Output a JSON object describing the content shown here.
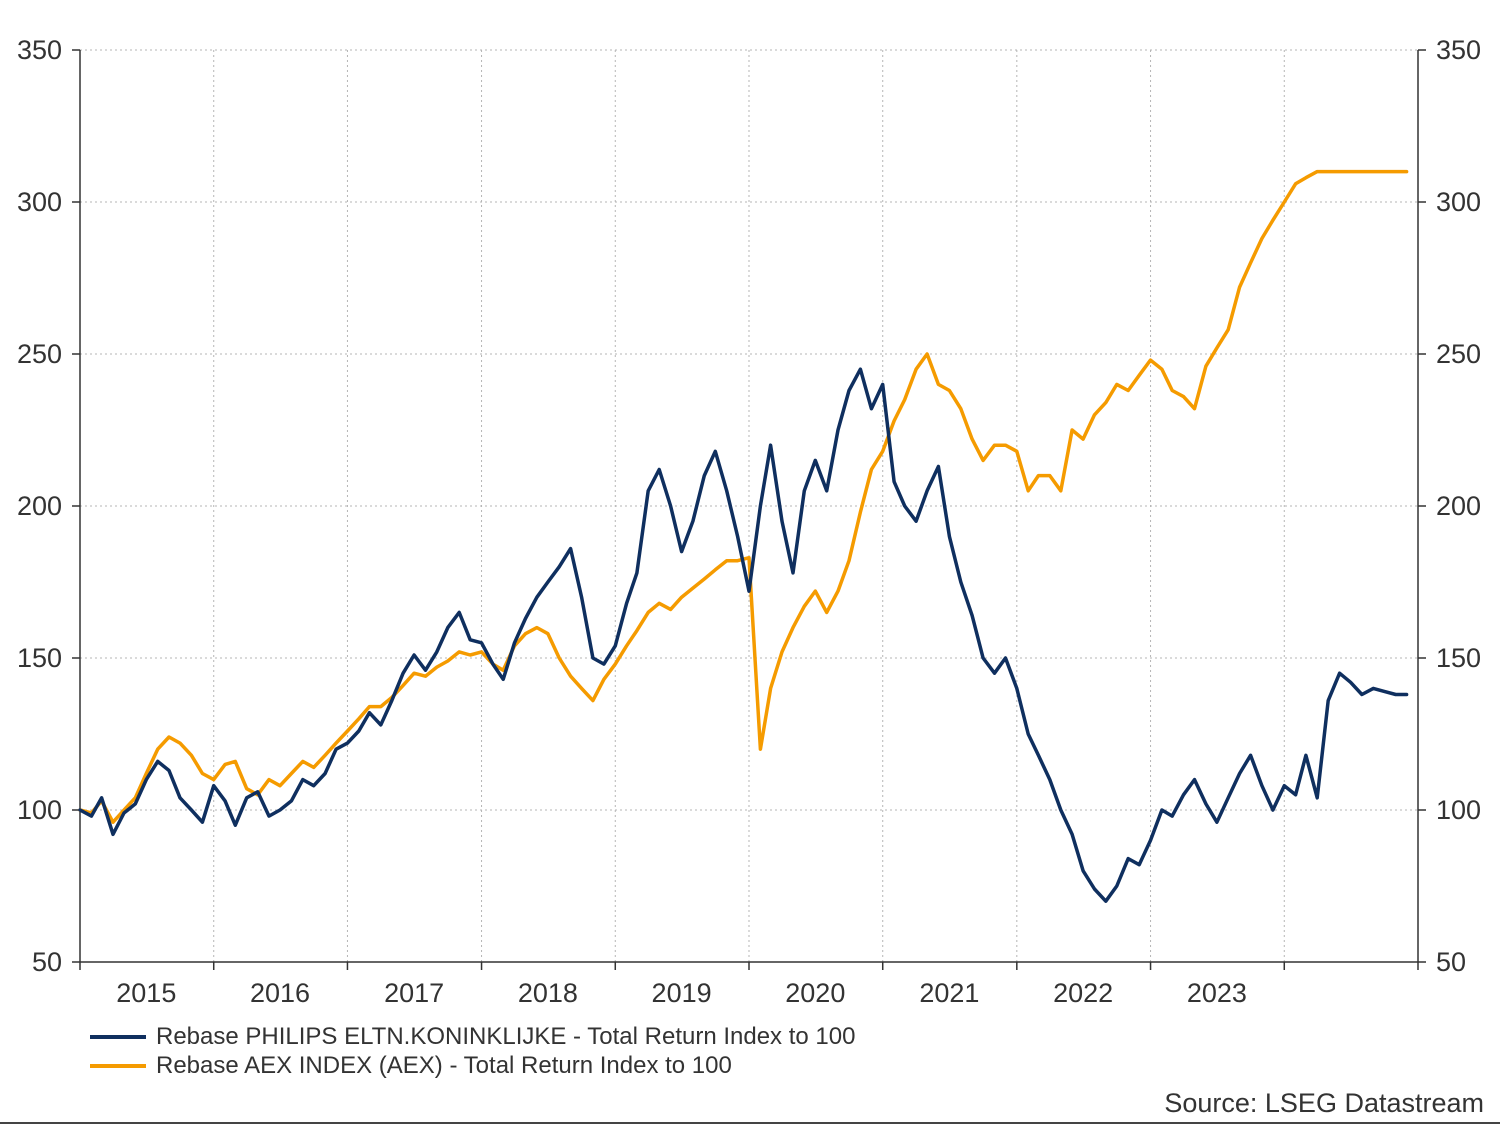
{
  "chart_data": {
    "type": "line",
    "title": "",
    "xlabel": "",
    "ylabel": "",
    "ylim": [
      50,
      350
    ],
    "xlim": [
      "2014-01-01",
      "2024-01-01"
    ],
    "y_ticks": [
      50,
      100,
      150,
      200,
      250,
      300,
      350
    ],
    "y_tick_labels": [
      "50",
      "100",
      "150",
      "200",
      "250",
      "300",
      "350"
    ],
    "x_tick_labels": [
      "2015",
      "2016",
      "2017",
      "2018",
      "2019",
      "2020",
      "2021",
      "2022",
      "2023"
    ],
    "x_tick_dates": [
      "2014-07-01",
      "2015-07-01",
      "2016-07-01",
      "2017-07-01",
      "2018-07-01",
      "2019-07-01",
      "2020-07-01",
      "2021-07-01",
      "2022-07-01"
    ],
    "x_major_ticks": [
      "2014-01-01",
      "2015-01-01",
      "2016-01-01",
      "2017-01-01",
      "2018-01-01",
      "2019-01-01",
      "2020-01-01",
      "2021-01-01",
      "2022-01-01",
      "2023-01-01",
      "2024-01-01"
    ],
    "grid": true,
    "dual_y_axis": true,
    "legend_position": "bottom-left",
    "series": [
      {
        "name": "Rebase PHILIPS ELTN.KONINKLIJKE - Total Return Index to 100",
        "color": "#0f2f5f",
        "x": [
          "2014-01-01",
          "2014-02-01",
          "2014-03-01",
          "2014-04-01",
          "2014-05-01",
          "2014-06-01",
          "2014-07-01",
          "2014-08-01",
          "2014-09-01",
          "2014-10-01",
          "2014-11-01",
          "2014-12-01",
          "2015-01-01",
          "2015-02-01",
          "2015-03-01",
          "2015-04-01",
          "2015-05-01",
          "2015-06-01",
          "2015-07-01",
          "2015-08-01",
          "2015-09-01",
          "2015-10-01",
          "2015-11-01",
          "2015-12-01",
          "2016-01-01",
          "2016-02-01",
          "2016-03-01",
          "2016-04-01",
          "2016-05-01",
          "2016-06-01",
          "2016-07-01",
          "2016-08-01",
          "2016-09-01",
          "2016-10-01",
          "2016-11-01",
          "2016-12-01",
          "2017-01-01",
          "2017-02-01",
          "2017-03-01",
          "2017-04-01",
          "2017-05-01",
          "2017-06-01",
          "2017-07-01",
          "2017-08-01",
          "2017-09-01",
          "2017-10-01",
          "2017-11-01",
          "2017-12-01",
          "2018-01-01",
          "2018-02-01",
          "2018-03-01",
          "2018-04-01",
          "2018-05-01",
          "2018-06-01",
          "2018-07-01",
          "2018-08-01",
          "2018-09-01",
          "2018-10-01",
          "2018-11-01",
          "2018-12-01",
          "2019-01-01",
          "2019-02-01",
          "2019-03-01",
          "2019-04-01",
          "2019-05-01",
          "2019-06-01",
          "2019-07-01",
          "2019-08-01",
          "2019-09-01",
          "2019-10-01",
          "2019-11-01",
          "2019-12-01",
          "2020-01-01",
          "2020-02-01",
          "2020-03-01",
          "2020-04-01",
          "2020-05-01",
          "2020-06-01",
          "2020-07-01",
          "2020-08-01",
          "2020-09-01",
          "2020-10-01",
          "2020-11-01",
          "2020-12-01",
          "2021-01-01",
          "2021-02-01",
          "2021-03-01",
          "2021-04-01",
          "2021-05-01",
          "2021-06-01",
          "2021-07-01",
          "2021-08-01",
          "2021-09-01",
          "2021-10-01",
          "2021-11-01",
          "2021-12-01",
          "2022-01-01",
          "2022-02-01",
          "2022-03-01",
          "2022-04-01",
          "2022-05-01",
          "2022-06-01",
          "2022-07-01",
          "2022-08-01",
          "2022-09-01",
          "2022-10-01",
          "2022-11-01",
          "2022-12-01",
          "2023-01-01",
          "2023-02-01",
          "2023-03-01",
          "2023-04-01",
          "2023-05-01",
          "2023-06-01",
          "2023-07-01",
          "2023-08-01",
          "2023-09-01",
          "2023-10-01",
          "2023-11-01",
          "2023-12-01"
        ],
        "values": [
          100,
          98,
          104,
          92,
          99,
          102,
          110,
          116,
          113,
          104,
          100,
          96,
          108,
          103,
          95,
          104,
          106,
          98,
          100,
          103,
          110,
          108,
          112,
          120,
          122,
          126,
          132,
          128,
          136,
          145,
          151,
          146,
          152,
          160,
          165,
          156,
          155,
          148,
          143,
          155,
          163,
          170,
          175,
          180,
          186,
          170,
          150,
          148,
          154,
          168,
          178,
          205,
          212,
          200,
          185,
          195,
          210,
          218,
          205,
          190,
          172,
          200,
          220,
          195,
          178,
          205,
          215,
          205,
          225,
          238,
          245,
          232,
          240,
          208,
          200,
          195,
          205,
          213,
          190,
          175,
          164,
          150,
          145,
          150,
          140,
          125,
          118,
          110,
          100,
          92,
          80,
          74,
          70,
          75,
          84,
          82,
          90,
          100,
          98,
          105,
          110,
          102,
          96,
          104,
          112,
          118,
          108,
          100,
          108,
          105,
          118,
          104,
          136,
          145,
          142,
          138,
          140,
          139,
          138,
          138
        ],
        "values_note": ""
      },
      {
        "name": "Rebase AEX INDEX (AEX) - Total Return Index to 100",
        "color": "#f59b00",
        "x": [
          "2014-01-01",
          "2014-02-01",
          "2014-03-01",
          "2014-04-01",
          "2014-05-01",
          "2014-06-01",
          "2014-07-01",
          "2014-08-01",
          "2014-09-01",
          "2014-10-01",
          "2014-11-01",
          "2014-12-01",
          "2015-01-01",
          "2015-02-01",
          "2015-03-01",
          "2015-04-01",
          "2015-05-01",
          "2015-06-01",
          "2015-07-01",
          "2015-08-01",
          "2015-09-01",
          "2015-10-01",
          "2015-11-01",
          "2015-12-01",
          "2016-01-01",
          "2016-02-01",
          "2016-03-01",
          "2016-04-01",
          "2016-05-01",
          "2016-06-01",
          "2016-07-01",
          "2016-08-01",
          "2016-09-01",
          "2016-10-01",
          "2016-11-01",
          "2016-12-01",
          "2017-01-01",
          "2017-02-01",
          "2017-03-01",
          "2017-04-01",
          "2017-05-01",
          "2017-06-01",
          "2017-07-01",
          "2017-08-01",
          "2017-09-01",
          "2017-10-01",
          "2017-11-01",
          "2017-12-01",
          "2018-01-01",
          "2018-02-01",
          "2018-03-01",
          "2018-04-01",
          "2018-05-01",
          "2018-06-01",
          "2018-07-01",
          "2018-08-01",
          "2018-09-01",
          "2018-10-01",
          "2018-11-01",
          "2018-12-01",
          "2019-01-01",
          "2019-02-01",
          "2019-03-01",
          "2019-04-01",
          "2019-05-01",
          "2019-06-01",
          "2019-07-01",
          "2019-08-01",
          "2019-09-01",
          "2019-10-01",
          "2019-11-01",
          "2019-12-01",
          "2020-01-01",
          "2020-02-01",
          "2020-03-01",
          "2020-04-01",
          "2020-05-01",
          "2020-06-01",
          "2020-07-01",
          "2020-08-01",
          "2020-09-01",
          "2020-10-01",
          "2020-11-01",
          "2020-12-01",
          "2021-01-01",
          "2021-02-01",
          "2021-03-01",
          "2021-04-01",
          "2021-05-01",
          "2021-06-01",
          "2021-07-01",
          "2021-08-01",
          "2021-09-01",
          "2021-10-01",
          "2021-11-01",
          "2021-12-01",
          "2022-01-01",
          "2022-02-01",
          "2022-03-01",
          "2022-04-01",
          "2022-05-01",
          "2022-06-01",
          "2022-07-01",
          "2022-08-01",
          "2022-09-01",
          "2022-10-01",
          "2022-11-01",
          "2022-12-01",
          "2023-01-01",
          "2023-02-01",
          "2023-03-01",
          "2023-04-01",
          "2023-05-01",
          "2023-06-01",
          "2023-07-01",
          "2023-08-01",
          "2023-09-01",
          "2023-10-01",
          "2023-11-01",
          "2023-12-01"
        ],
        "values": [
          100,
          99,
          103,
          96,
          100,
          104,
          112,
          120,
          124,
          122,
          118,
          112,
          110,
          115,
          116,
          107,
          105,
          110,
          108,
          112,
          116,
          114,
          118,
          122,
          126,
          130,
          134,
          134,
          137,
          141,
          145,
          144,
          147,
          149,
          152,
          151,
          152,
          148,
          146,
          154,
          158,
          160,
          158,
          150,
          144,
          140,
          136,
          143,
          148,
          154,
          159,
          165,
          168,
          166,
          170,
          173,
          176,
          179,
          182,
          182,
          183,
          120,
          140,
          152,
          160,
          167,
          172,
          165,
          172,
          182,
          198,
          212,
          218,
          228,
          235,
          245,
          250,
          240,
          238,
          232,
          222,
          215,
          220,
          220,
          218,
          205,
          210,
          210,
          205,
          225,
          222,
          230,
          234,
          240,
          238,
          243,
          248,
          245,
          238,
          236,
          232,
          246,
          252,
          258,
          272,
          280,
          288,
          294,
          300,
          306,
          308,
          310,
          310,
          310,
          310,
          310,
          310,
          310,
          310,
          310
        ],
        "values_note": ""
      }
    ]
  },
  "legend": {
    "items": [
      {
        "label": "Rebase PHILIPS ELTN.KONINKLIJKE - Total Return Index to 100",
        "color": "#0f2f5f"
      },
      {
        "label": "Rebase AEX INDEX (AEX) - Total Return Index to 100",
        "color": "#f59b00"
      }
    ]
  },
  "source": "Source: LSEG Datastream"
}
